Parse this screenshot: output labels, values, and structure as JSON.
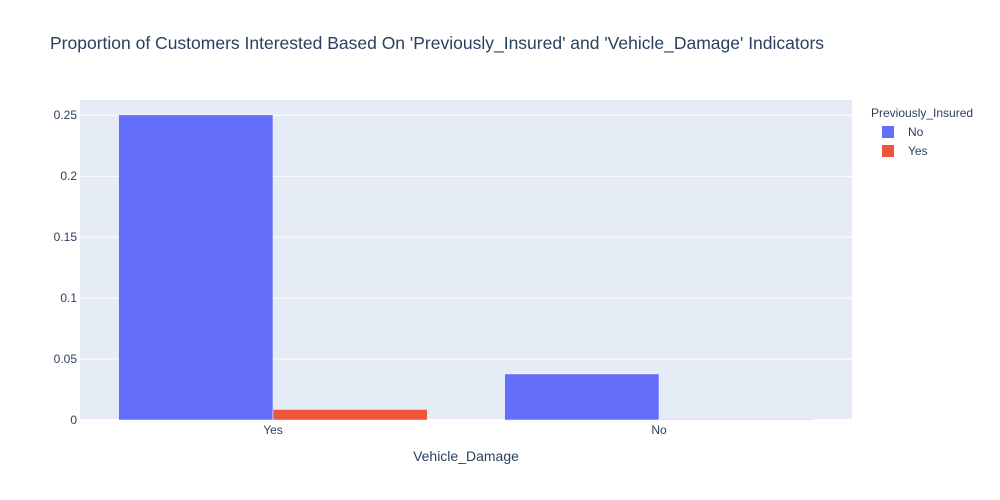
{
  "chart_data": {
    "type": "bar",
    "title": "Proportion of Customers Interested Based On 'Previously_Insured' and 'Vehicle_Damage' Indicators",
    "xlabel": "Vehicle_Damage",
    "ylabel": "",
    "categories": [
      "Yes",
      "No"
    ],
    "ylim": [
      0,
      0.2625
    ],
    "yticks": [
      0,
      0.05,
      0.1,
      0.15,
      0.2,
      0.25
    ],
    "ytick_labels": [
      "0",
      "0.05",
      "0.1",
      "0.15",
      "0.2",
      "0.25"
    ],
    "grid": true,
    "legend_title": "Previously_Insured",
    "legend_position": "top-right",
    "series": [
      {
        "name": "No",
        "color": "#636efa",
        "values": [
          0.2503,
          0.0378
        ]
      },
      {
        "name": "Yes",
        "color": "#ef553b",
        "values": [
          0.0087,
          0.0006
        ]
      }
    ]
  }
}
